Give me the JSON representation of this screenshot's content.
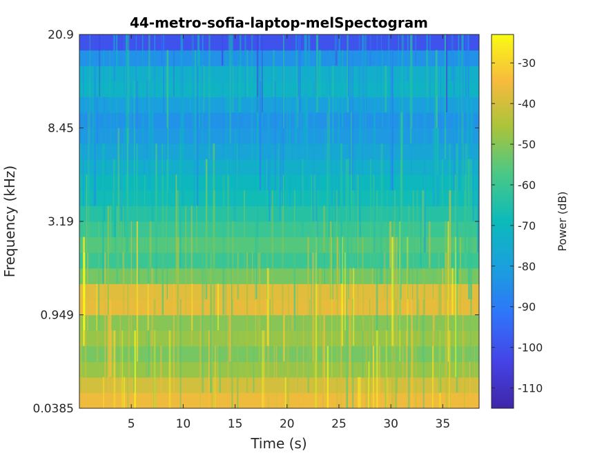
{
  "chart_data": {
    "type": "heatmap",
    "title": "44-metro-sofia-laptop-melSpectogram",
    "xlabel": "Time (s)",
    "ylabel": "Frequency (kHz)",
    "xlim": [
      0,
      38.5
    ],
    "x_ticks": [
      5,
      10,
      15,
      20,
      25,
      30,
      35
    ],
    "y_scale": "mel",
    "y_ticks": [
      "0.0385",
      "0.949",
      "3.19",
      "8.45",
      "20.9"
    ],
    "colorbar": {
      "label": "Power (dB)",
      "range": [
        -115,
        -23
      ],
      "ticks": [
        -30,
        -40,
        -50,
        -60,
        -70,
        -80,
        -90,
        -100,
        -110
      ],
      "colormap": "parula"
    },
    "bands": [
      {
        "frequency_band_bottom_to_top": 1,
        "approx_db": -36
      },
      {
        "frequency_band_bottom_to_top": 2,
        "approx_db": -40
      },
      {
        "frequency_band_bottom_to_top": 3,
        "approx_db": -48
      },
      {
        "frequency_band_bottom_to_top": 4,
        "approx_db": -52
      },
      {
        "frequency_band_bottom_to_top": 5,
        "approx_db": -48
      },
      {
        "frequency_band_bottom_to_top": 6,
        "approx_db": -50
      },
      {
        "frequency_band_bottom_to_top": 7,
        "approx_db": -37
      },
      {
        "frequency_band_bottom_to_top": 8,
        "approx_db": -38
      },
      {
        "frequency_band_bottom_to_top": 9,
        "approx_db": -52
      },
      {
        "frequency_band_bottom_to_top": 10,
        "approx_db": -60
      },
      {
        "frequency_band_bottom_to_top": 11,
        "approx_db": -56
      },
      {
        "frequency_band_bottom_to_top": 12,
        "approx_db": -60
      },
      {
        "frequency_band_bottom_to_top": 13,
        "approx_db": -64
      },
      {
        "frequency_band_bottom_to_top": 14,
        "approx_db": -68
      },
      {
        "frequency_band_bottom_to_top": 15,
        "approx_db": -70
      },
      {
        "frequency_band_bottom_to_top": 16,
        "approx_db": -74
      },
      {
        "frequency_band_bottom_to_top": 17,
        "approx_db": -78
      },
      {
        "frequency_band_bottom_to_top": 18,
        "approx_db": -82
      },
      {
        "frequency_band_bottom_to_top": 19,
        "approx_db": -84
      },
      {
        "frequency_band_bottom_to_top": 20,
        "approx_db": -80
      },
      {
        "frequency_band_bottom_to_top": 21,
        "approx_db": -72
      },
      {
        "frequency_band_bottom_to_top": 22,
        "approx_db": -74
      },
      {
        "frequency_band_bottom_to_top": 23,
        "approx_db": -84
      },
      {
        "frequency_band_bottom_to_top": 24,
        "approx_db": -100
      }
    ]
  }
}
